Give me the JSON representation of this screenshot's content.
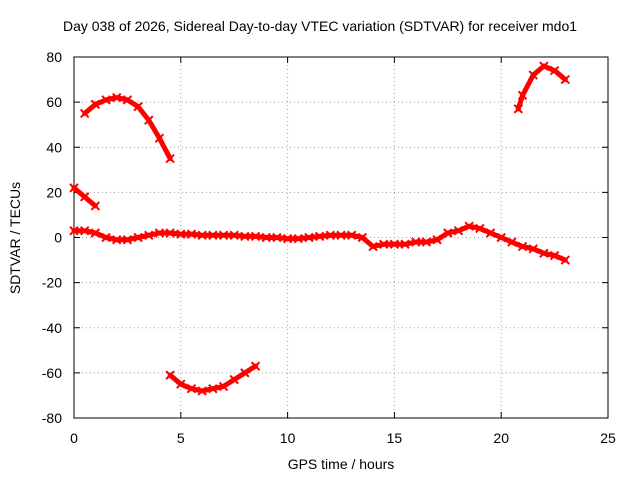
{
  "chart_data": {
    "type": "scatter",
    "title": "Day 038 of 2026, Sidereal Day-to-day VTEC variation (SDTVAR) for receiver mdo1",
    "xlabel": "GPS time / hours",
    "ylabel": "SDTVAR / TECUs",
    "xlim": [
      0,
      25
    ],
    "ylim": [
      -80,
      80
    ],
    "xticks": [
      "0",
      "5",
      "10",
      "15",
      "20",
      "25"
    ],
    "yticks": [
      "-80",
      "-60",
      "-40",
      "-20",
      "0",
      "20",
      "40",
      "60",
      "80"
    ],
    "grid": true,
    "series_color": "#ff0000",
    "series": [
      {
        "name": "main",
        "x": [
          0,
          0.5,
          1,
          1.5,
          2,
          2.5,
          3,
          3.5,
          4,
          4.5,
          5,
          5.5,
          6,
          6.5,
          7,
          7.5,
          8,
          8.5,
          9,
          9.5,
          10,
          10.5,
          11,
          11.5,
          12,
          12.5,
          13,
          13.5,
          14,
          14.5,
          15,
          15.5,
          16,
          16.5,
          17,
          17.5,
          18,
          18.5,
          19,
          19.5,
          20,
          20.5,
          21,
          21.5,
          22,
          22.5,
          23
        ],
        "y": [
          3,
          3,
          2,
          0,
          -1,
          -1,
          0,
          1,
          2,
          2,
          1.5,
          1.5,
          1,
          1,
          1,
          1,
          0.5,
          0.5,
          0,
          0,
          -0.5,
          -0.5,
          0,
          0.5,
          1,
          1,
          1,
          0,
          -4,
          -3,
          -3,
          -3,
          -2,
          -2,
          -1,
          2,
          3,
          5,
          4,
          2,
          0,
          -2,
          -4,
          -5,
          -7,
          -8,
          -10
        ]
      },
      {
        "name": "arc1",
        "x": [
          0.5,
          1,
          1.5,
          2,
          2.5,
          3,
          3.5,
          4,
          4.5
        ],
        "y": [
          55,
          59,
          61,
          62,
          61,
          58,
          52,
          44,
          35
        ]
      },
      {
        "name": "arc2",
        "x": [
          0,
          0.5,
          1
        ],
        "y": [
          22,
          18,
          14
        ]
      },
      {
        "name": "arc3",
        "x": [
          4.5,
          5,
          5.5,
          6,
          6.5,
          7,
          7.5,
          8,
          8.5
        ],
        "y": [
          -61,
          -65,
          -67,
          -68,
          -67,
          -66,
          -63,
          -60,
          -57
        ]
      },
      {
        "name": "arc4",
        "x": [
          20.8,
          21,
          21.5,
          22,
          22.5,
          23
        ],
        "y": [
          57,
          63,
          72,
          76,
          74,
          70
        ]
      }
    ]
  }
}
